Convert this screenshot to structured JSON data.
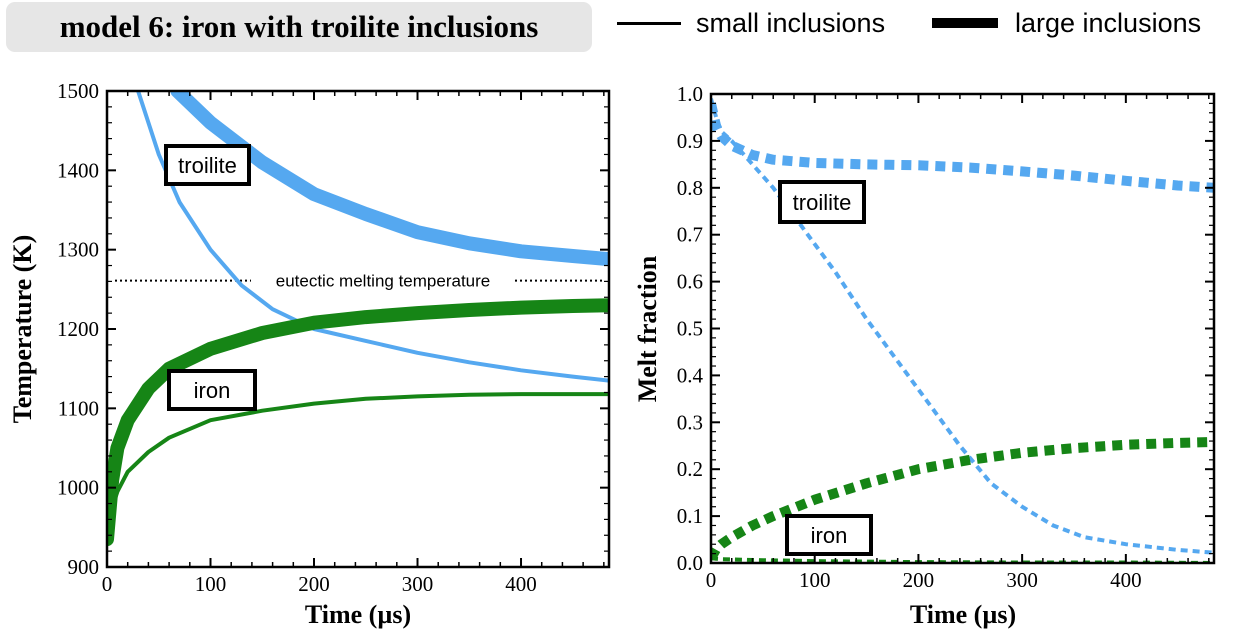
{
  "header": {
    "title": "model 6: iron with troilite inclusions",
    "legend": [
      {
        "label": "small inclusions",
        "style": "thin"
      },
      {
        "label": "large inclusions",
        "style": "thick"
      }
    ]
  },
  "colors": {
    "troilite": "#55a8f0",
    "iron": "#168516",
    "axis": "#000000"
  },
  "chart_data": [
    {
      "type": "line",
      "xlabel": "Time (µs)",
      "ylabel": "Temperature (K)",
      "xlim": [
        0,
        485
      ],
      "ylim": [
        900,
        1500
      ],
      "xticks": [
        "0",
        "100",
        "200",
        "300",
        "400"
      ],
      "yticks": [
        "900",
        "1000",
        "1100",
        "1200",
        "1300",
        "1400",
        "1500"
      ],
      "grid": false,
      "annotations": [
        {
          "text": "troilite",
          "x": 95,
          "y": 1405
        },
        {
          "text": "iron",
          "x": 105,
          "y": 1122
        }
      ],
      "reference_line": {
        "label": "eutectic melting temperature",
        "y": 1261,
        "style": "dotted"
      },
      "series": [
        {
          "material": "troilite",
          "inclusions": "small",
          "x": [
            30,
            50,
            70,
            100,
            130,
            160,
            200,
            250,
            300,
            350,
            400,
            450,
            485
          ],
          "y": [
            1500,
            1420,
            1360,
            1300,
            1255,
            1225,
            1200,
            1185,
            1170,
            1158,
            1148,
            1140,
            1135
          ]
        },
        {
          "material": "troilite",
          "inclusions": "large",
          "x": [
            68,
            100,
            150,
            200,
            250,
            300,
            350,
            400,
            450,
            485
          ],
          "y": [
            1500,
            1460,
            1410,
            1370,
            1345,
            1322,
            1308,
            1298,
            1292,
            1288
          ]
        },
        {
          "material": "iron",
          "inclusions": "small",
          "x": [
            0,
            5,
            10,
            20,
            40,
            60,
            100,
            150,
            200,
            250,
            300,
            350,
            400,
            450,
            485
          ],
          "y": [
            940,
            975,
            995,
            1020,
            1045,
            1063,
            1085,
            1097,
            1106,
            1112,
            1115,
            1117,
            1118,
            1118,
            1118
          ]
        },
        {
          "material": "iron",
          "inclusions": "large",
          "x": [
            0,
            5,
            10,
            20,
            40,
            60,
            100,
            150,
            200,
            250,
            300,
            350,
            400,
            450,
            485
          ],
          "y": [
            935,
            1010,
            1050,
            1085,
            1125,
            1150,
            1175,
            1195,
            1208,
            1215,
            1220,
            1224,
            1227,
            1229,
            1230
          ]
        }
      ]
    },
    {
      "type": "line",
      "xlabel": "Time (µs)",
      "ylabel": "Melt fraction",
      "xlim": [
        0,
        485
      ],
      "ylim": [
        0,
        1.0
      ],
      "xticks": [
        "0",
        "100",
        "200",
        "300",
        "400"
      ],
      "yticks": [
        "0.0",
        "0.1",
        "0.2",
        "0.3",
        "0.4",
        "0.5",
        "0.6",
        "0.7",
        "0.8",
        "0.9",
        "1.0"
      ],
      "grid": false,
      "annotations": [
        {
          "text": "troilite",
          "x": 105,
          "y": 0.76
        },
        {
          "text": "iron",
          "x": 115,
          "y": 0.055
        }
      ],
      "series": [
        {
          "material": "troilite",
          "inclusions": "small",
          "x": [
            0,
            5,
            10,
            20,
            40,
            60,
            80,
            100,
            120,
            150,
            180,
            210,
            240,
            270,
            300,
            330,
            360,
            400,
            450,
            485
          ],
          "y": [
            0.99,
            0.95,
            0.92,
            0.9,
            0.85,
            0.8,
            0.74,
            0.68,
            0.62,
            0.52,
            0.43,
            0.34,
            0.25,
            0.17,
            0.12,
            0.08,
            0.055,
            0.04,
            0.028,
            0.022
          ]
        },
        {
          "material": "troilite",
          "inclusions": "large",
          "x": [
            0,
            5,
            10,
            20,
            40,
            60,
            100,
            150,
            200,
            250,
            300,
            350,
            400,
            450,
            485
          ],
          "y": [
            0.98,
            0.93,
            0.91,
            0.89,
            0.87,
            0.86,
            0.853,
            0.85,
            0.848,
            0.843,
            0.835,
            0.826,
            0.815,
            0.805,
            0.8
          ]
        },
        {
          "material": "iron",
          "inclusions": "small",
          "x": [
            0,
            10,
            50,
            100,
            200,
            300,
            400,
            485
          ],
          "y": [
            0.01,
            0.008,
            0.006,
            0.004,
            0.002,
            0.001,
            0.001,
            0.0
          ]
        },
        {
          "material": "iron",
          "inclusions": "large",
          "x": [
            0,
            5,
            10,
            20,
            40,
            60,
            100,
            150,
            200,
            250,
            300,
            350,
            400,
            450,
            485
          ],
          "y": [
            0.01,
            0.03,
            0.04,
            0.055,
            0.08,
            0.1,
            0.135,
            0.17,
            0.2,
            0.22,
            0.235,
            0.245,
            0.252,
            0.256,
            0.258
          ]
        }
      ]
    }
  ]
}
